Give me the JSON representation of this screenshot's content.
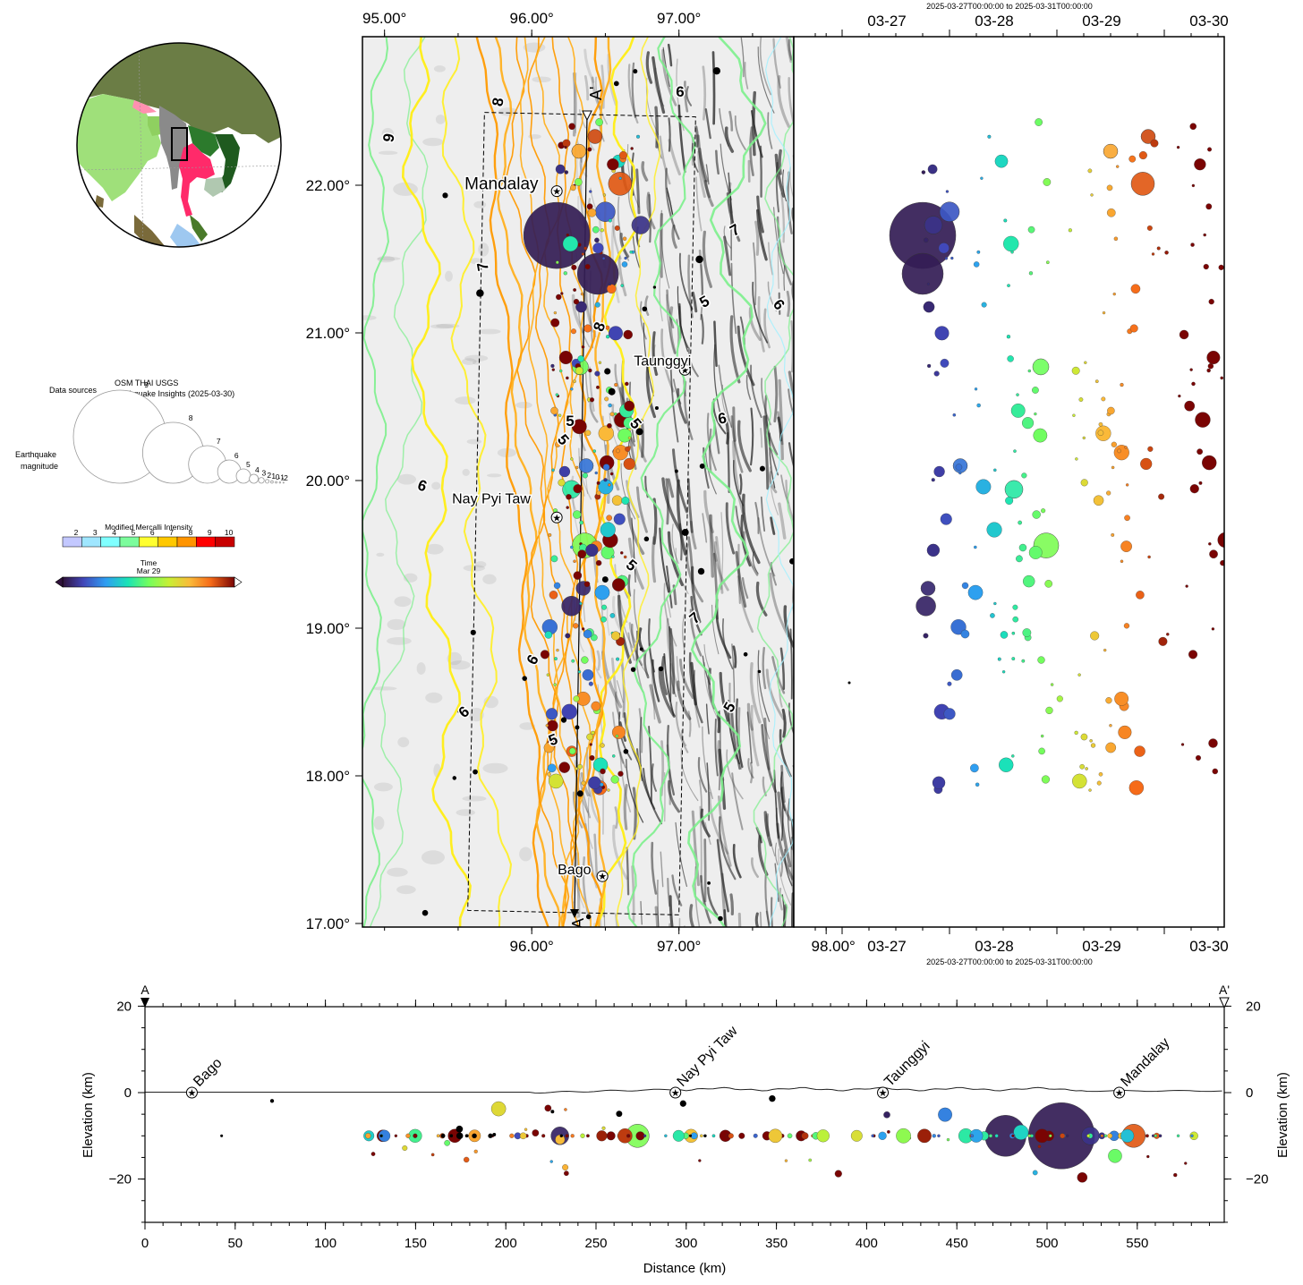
{
  "map": {
    "top_lon_ticks": [
      "95.00°",
      "96.00°",
      "97.00°"
    ],
    "bottom_lon_ticks": [
      "96.00°",
      "97.00°",
      "98.00°"
    ],
    "lat_ticks": [
      "22.00°",
      "21.00°",
      "20.00°",
      "19.00°",
      "18.00°",
      "17.00°"
    ],
    "cities": [
      {
        "name": "Mandalay",
        "lon": 96.17,
        "lat": 21.96
      },
      {
        "name": "Taunggyi",
        "lon": 97.04,
        "lat": 20.75
      },
      {
        "name": "Nay Pyi Taw",
        "lon": 96.17,
        "lat": 19.75
      },
      {
        "name": "Bago",
        "lon": 96.48,
        "lat": 17.32
      }
    ],
    "profile_end_labels": [
      "A'",
      "A"
    ],
    "mmi_contour_labels": [
      "8",
      "9",
      "6",
      "7",
      "5",
      "6",
      "7",
      "8",
      "6",
      "5",
      "5",
      "5",
      "6",
      "5",
      "7",
      "6",
      "6",
      "5",
      "5"
    ]
  },
  "timeline": {
    "range_label": "2025-03-27T00:00:00 to 2025-03-31T00:00:00",
    "ticks": [
      "03-27",
      "03-28",
      "03-29",
      "03-30"
    ]
  },
  "legend": {
    "data_sources_label": "Data sources",
    "data_sources_value": "OSM THAI USGS",
    "data_sources_detail": "Earthquake Insights (2025-03-30)",
    "magnitude_label_1": "Earthquake",
    "magnitude_label_2": "magnitude",
    "magnitudes": [
      "9",
      "8",
      "7",
      "6",
      "5",
      "4",
      "3",
      "2",
      "1",
      "0",
      "-1",
      "-2"
    ],
    "mmi_title": "Modified Mercalli Intensity",
    "mmi_ticks": [
      "2",
      "3",
      "4",
      "5",
      "6",
      "7",
      "8",
      "9",
      "10"
    ],
    "mmi_colors": [
      "#c3c8ff",
      "#9fe6ff",
      "#80ffff",
      "#7cfc9c",
      "#ffff30",
      "#ffc800",
      "#ff9400",
      "#ff0000",
      "#c80000"
    ],
    "time_title": "Time",
    "time_mid": "Mar 29"
  },
  "profile": {
    "end_left": "A",
    "end_right": "A'",
    "y_axis_label": "Elevation (km)",
    "x_axis_label": "Distance (km)",
    "y_ticks": [
      "20",
      "0",
      "−20"
    ],
    "x_ticks": [
      "0",
      "50",
      "100",
      "150",
      "200",
      "250",
      "300",
      "350",
      "400",
      "450",
      "500",
      "550"
    ],
    "towns": [
      {
        "name": "Bago",
        "km": 26
      },
      {
        "name": "Nay Pyi Taw",
        "km": 294
      },
      {
        "name": "Taunggyi",
        "km": 409
      },
      {
        "name": "Mandalay",
        "km": 540
      }
    ]
  },
  "colors": {
    "mainshock": "#3a48c4",
    "early": "#2f6fe0",
    "mid": "#5ce07a",
    "late": "#e86a1c",
    "contour_yellow": "#ffee20",
    "contour_orange": "#ff9a00",
    "contour_green": "#7cf08c"
  }
}
